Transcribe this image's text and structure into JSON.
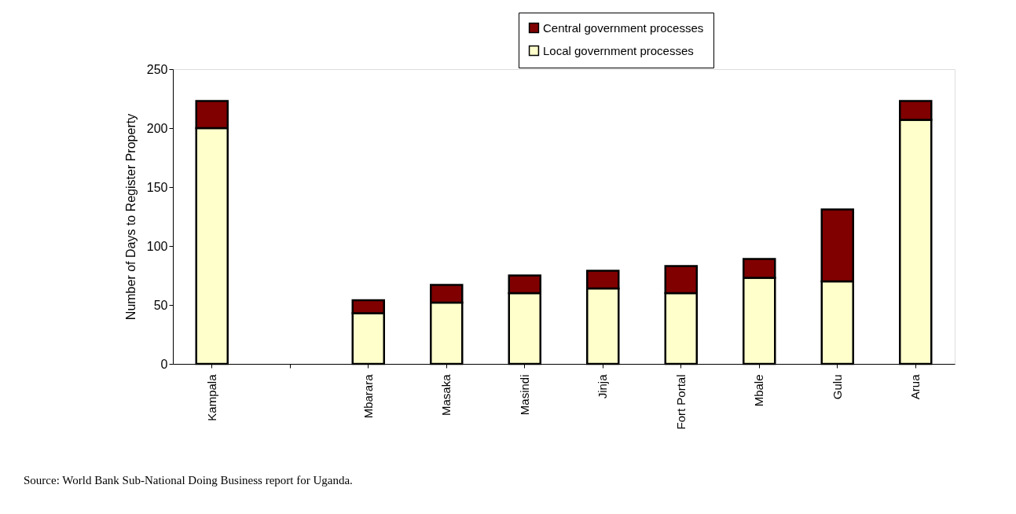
{
  "chart_data": {
    "type": "bar",
    "stacked": true,
    "ylabel": "Number of Days to Register Property",
    "categories": [
      "Kampala",
      null,
      "Mbarara",
      "Masaka",
      "Masindi",
      "Jinja",
      "Fort Portal",
      "Mbale",
      "Gulu",
      "Arua"
    ],
    "series": [
      {
        "name": "Local government processes",
        "color": "#ffffcc",
        "values": [
          200,
          null,
          43,
          52,
          60,
          64,
          60,
          73,
          70,
          207
        ]
      },
      {
        "name": "Central government processes",
        "color": "#800000",
        "values": [
          23,
          null,
          11,
          15,
          15,
          15,
          23,
          16,
          61,
          16
        ]
      }
    ],
    "ylim": [
      0,
      250
    ],
    "yticks": [
      0,
      50,
      100,
      150,
      200,
      250
    ],
    "grid": false,
    "legend": "top right",
    "annotations": [
      "Source:  World Bank Sub-National Doing Business report for Uganda."
    ]
  }
}
